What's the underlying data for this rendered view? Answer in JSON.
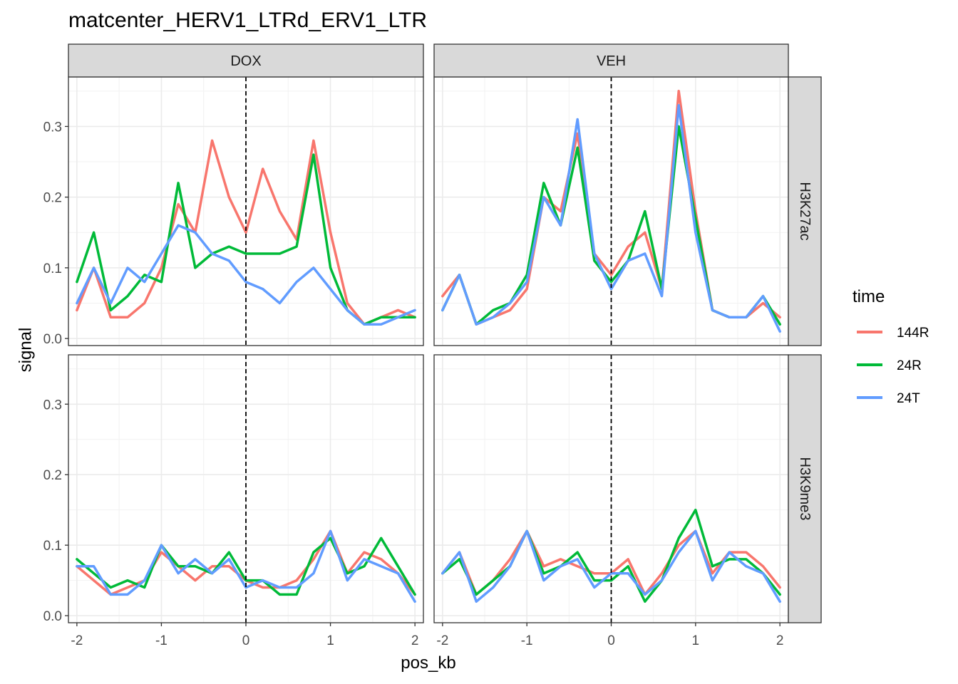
{
  "chart_data": {
    "type": "line",
    "title": "matcenter_HERV1_LTRd_ERV1_LTR",
    "xlabel": "pos_kb",
    "ylabel": "signal",
    "xlim": [
      -2.1,
      2.1
    ],
    "ylim": [
      -0.01,
      0.37
    ],
    "x_ticks": [
      -2,
      -1,
      0,
      1,
      2
    ],
    "x_tick_labels": [
      "-2",
      "-1",
      "0",
      "1",
      "2"
    ],
    "y_ticks": [
      0.0,
      0.1,
      0.2,
      0.3
    ],
    "y_tick_labels": [
      "0.0",
      "0.1",
      "0.2",
      "0.3"
    ],
    "reference_line": {
      "x": 0,
      "style": "dashed"
    },
    "grid": true,
    "facet_columns": [
      "DOX",
      "VEH"
    ],
    "facet_rows": [
      "H3K27ac",
      "H3K9me3"
    ],
    "legend": {
      "title": "time",
      "placement": "right",
      "entries": [
        "144R",
        "24R",
        "24T"
      ]
    },
    "colors": {
      "144R": "#F8766D",
      "24R": "#00BA38",
      "24T": "#619CFF"
    },
    "x": [
      -2.0,
      -1.8,
      -1.6,
      -1.4,
      -1.2,
      -1.0,
      -0.8,
      -0.6,
      -0.4,
      -0.2,
      0.0,
      0.2,
      0.4,
      0.6,
      0.8,
      1.0,
      1.2,
      1.4,
      1.6,
      1.8,
      2.0
    ],
    "panels": [
      {
        "column": "DOX",
        "row": "H3K27ac",
        "series": [
          {
            "name": "144R",
            "values": [
              0.04,
              0.1,
              0.03,
              0.03,
              0.05,
              0.1,
              0.19,
              0.15,
              0.28,
              0.2,
              0.15,
              0.24,
              0.18,
              0.14,
              0.28,
              0.15,
              0.05,
              0.02,
              0.03,
              0.04,
              0.03
            ]
          },
          {
            "name": "24R",
            "values": [
              0.08,
              0.15,
              0.04,
              0.06,
              0.09,
              0.08,
              0.22,
              0.1,
              0.12,
              0.13,
              0.12,
              0.12,
              0.12,
              0.13,
              0.26,
              0.1,
              0.04,
              0.02,
              0.03,
              0.03,
              0.03
            ]
          },
          {
            "name": "24T",
            "values": [
              0.05,
              0.1,
              0.05,
              0.1,
              0.08,
              0.12,
              0.16,
              0.15,
              0.12,
              0.11,
              0.08,
              0.07,
              0.05,
              0.08,
              0.1,
              0.07,
              0.04,
              0.02,
              0.02,
              0.03,
              0.04
            ]
          }
        ]
      },
      {
        "column": "VEH",
        "row": "H3K27ac",
        "series": [
          {
            "name": "144R",
            "values": [
              0.06,
              0.09,
              0.02,
              0.03,
              0.04,
              0.07,
              0.2,
              0.18,
              0.29,
              0.12,
              0.09,
              0.13,
              0.15,
              0.07,
              0.35,
              0.18,
              0.04,
              0.03,
              0.03,
              0.05,
              0.03
            ]
          },
          {
            "name": "24R",
            "values": [
              0.04,
              0.09,
              0.02,
              0.04,
              0.05,
              0.09,
              0.22,
              0.16,
              0.27,
              0.11,
              0.08,
              0.11,
              0.18,
              0.07,
              0.3,
              0.17,
              0.04,
              0.03,
              0.03,
              0.06,
              0.02
            ]
          },
          {
            "name": "24T",
            "values": [
              0.04,
              0.09,
              0.02,
              0.03,
              0.05,
              0.08,
              0.2,
              0.16,
              0.31,
              0.12,
              0.07,
              0.11,
              0.12,
              0.06,
              0.33,
              0.15,
              0.04,
              0.03,
              0.03,
              0.06,
              0.01
            ]
          }
        ]
      },
      {
        "column": "DOX",
        "row": "H3K9me3",
        "series": [
          {
            "name": "144R",
            "values": [
              0.07,
              0.05,
              0.03,
              0.04,
              0.05,
              0.09,
              0.07,
              0.05,
              0.07,
              0.07,
              0.05,
              0.04,
              0.04,
              0.05,
              0.08,
              0.12,
              0.06,
              0.09,
              0.08,
              0.06,
              0.03
            ]
          },
          {
            "name": "24R",
            "values": [
              0.08,
              0.06,
              0.04,
              0.05,
              0.04,
              0.1,
              0.07,
              0.07,
              0.06,
              0.09,
              0.05,
              0.05,
              0.03,
              0.03,
              0.09,
              0.11,
              0.06,
              0.07,
              0.11,
              0.07,
              0.03
            ]
          },
          {
            "name": "24T",
            "values": [
              0.07,
              0.07,
              0.03,
              0.03,
              0.05,
              0.1,
              0.06,
              0.08,
              0.06,
              0.08,
              0.04,
              0.05,
              0.04,
              0.04,
              0.06,
              0.12,
              0.05,
              0.08,
              0.07,
              0.06,
              0.02
            ]
          }
        ]
      },
      {
        "column": "VEH",
        "row": "H3K9me3",
        "series": [
          {
            "name": "144R",
            "values": [
              0.06,
              0.09,
              0.03,
              0.05,
              0.08,
              0.12,
              0.07,
              0.08,
              0.07,
              0.06,
              0.06,
              0.08,
              0.03,
              0.06,
              0.1,
              0.12,
              0.06,
              0.09,
              0.09,
              0.07,
              0.04
            ]
          },
          {
            "name": "24R",
            "values": [
              0.06,
              0.08,
              0.03,
              0.05,
              0.07,
              0.12,
              0.06,
              0.07,
              0.09,
              0.05,
              0.05,
              0.07,
              0.02,
              0.05,
              0.11,
              0.15,
              0.07,
              0.08,
              0.08,
              0.06,
              0.03
            ]
          },
          {
            "name": "24T",
            "values": [
              0.06,
              0.09,
              0.02,
              0.04,
              0.07,
              0.12,
              0.05,
              0.07,
              0.08,
              0.04,
              0.06,
              0.06,
              0.03,
              0.05,
              0.09,
              0.12,
              0.05,
              0.09,
              0.07,
              0.06,
              0.02
            ]
          }
        ]
      }
    ]
  }
}
